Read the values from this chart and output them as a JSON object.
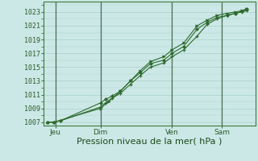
{
  "title": "Pression niveau de la mer( hPa )",
  "background_color": "#cce8e6",
  "line_color": "#2d6a2d",
  "marker_color": "#2d6a2d",
  "ylim": [
    1006.5,
    1024.5
  ],
  "yticks": [
    1007,
    1009,
    1011,
    1013,
    1015,
    1017,
    1019,
    1021,
    1023
  ],
  "xtick_labels": [
    "Jeu",
    "Dim",
    "Ven",
    "Sam"
  ],
  "xtick_positions": [
    0.5,
    3.2,
    7.5,
    10.5
  ],
  "vline_positions": [
    0.5,
    3.2,
    7.5,
    10.5
  ],
  "series1_x": [
    0.0,
    0.4,
    0.8,
    3.2,
    3.5,
    3.9,
    4.4,
    5.0,
    5.6,
    6.2,
    7.0,
    7.5,
    8.2,
    9.0,
    9.6,
    10.2,
    10.8,
    11.3,
    11.7,
    12.0
  ],
  "series1_y": [
    1007.0,
    1007.0,
    1007.2,
    1009.2,
    1009.8,
    1010.5,
    1011.2,
    1012.5,
    1013.8,
    1015.0,
    1015.6,
    1016.5,
    1017.5,
    1019.5,
    1021.2,
    1022.0,
    1022.5,
    1022.8,
    1023.0,
    1023.2
  ],
  "series2_x": [
    0.0,
    0.4,
    0.8,
    3.2,
    3.5,
    3.9,
    4.4,
    5.0,
    5.6,
    6.2,
    7.0,
    7.5,
    8.2,
    9.0,
    9.6,
    10.2,
    10.8,
    11.3,
    11.7,
    12.0
  ],
  "series2_y": [
    1007.0,
    1007.0,
    1007.2,
    1009.8,
    1010.3,
    1010.8,
    1011.5,
    1013.0,
    1014.2,
    1015.5,
    1016.0,
    1017.0,
    1018.0,
    1020.5,
    1021.5,
    1022.2,
    1022.5,
    1022.8,
    1023.1,
    1023.4
  ],
  "series3_x": [
    0.0,
    0.4,
    3.2,
    3.7,
    4.4,
    5.0,
    5.6,
    6.2,
    7.0,
    7.5,
    8.2,
    9.0,
    9.6,
    10.2,
    10.8,
    11.3,
    11.7,
    12.0
  ],
  "series3_y": [
    1007.0,
    1007.0,
    1009.0,
    1010.0,
    1011.5,
    1013.0,
    1014.5,
    1015.8,
    1016.5,
    1017.5,
    1018.5,
    1021.0,
    1021.8,
    1022.5,
    1022.8,
    1023.0,
    1023.2,
    1023.5
  ],
  "xlabel_fontsize": 8,
  "ytick_fontsize": 6,
  "xtick_fontsize": 6.5
}
